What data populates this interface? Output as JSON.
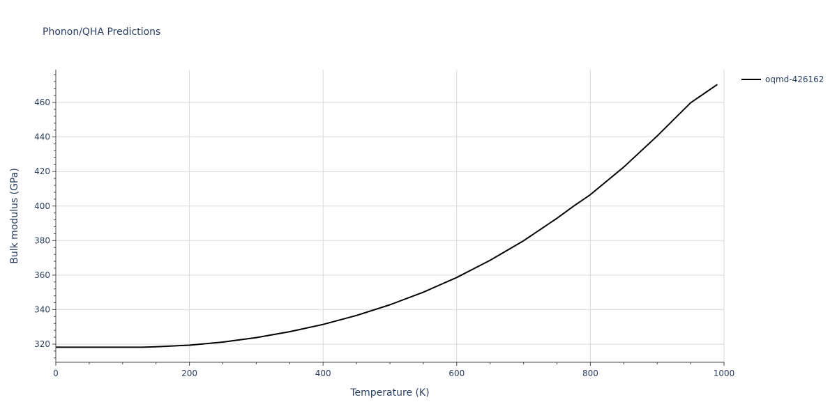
{
  "chart_data": {
    "type": "line",
    "title": "Phonon/QHA Predictions",
    "xlabel": "Temperature (K)",
    "ylabel": "Bulk modulus (GPa)",
    "xlim": [
      0,
      1000
    ],
    "ylim": [
      309.5,
      479
    ],
    "xticks": [
      0,
      200,
      400,
      600,
      800,
      1000
    ],
    "yticks": [
      320,
      340,
      360,
      380,
      400,
      420,
      440,
      460
    ],
    "xtick_labels": [
      "0",
      "200",
      "400",
      "600",
      "800",
      "1000"
    ],
    "ytick_labels": [
      "320",
      "340",
      "360",
      "380",
      "400",
      "420",
      "440",
      "460"
    ],
    "grid": true,
    "legend_position": "top-right",
    "series": [
      {
        "name": "oqmd-426162",
        "color": "#000000",
        "x": [
          0,
          50,
          100,
          130,
          150,
          200,
          250,
          300,
          350,
          400,
          450,
          500,
          550,
          600,
          650,
          700,
          750,
          775,
          800,
          850,
          900,
          950,
          990
        ],
        "y": [
          318.2,
          318.2,
          318.2,
          318.2,
          318.5,
          319.4,
          321.2,
          323.8,
          327.2,
          331.4,
          336.6,
          342.8,
          350.1,
          358.6,
          368.6,
          379.9,
          392.9,
          400.0,
          406.6,
          422.6,
          440.6,
          459.8,
          470.4
        ]
      }
    ]
  }
}
